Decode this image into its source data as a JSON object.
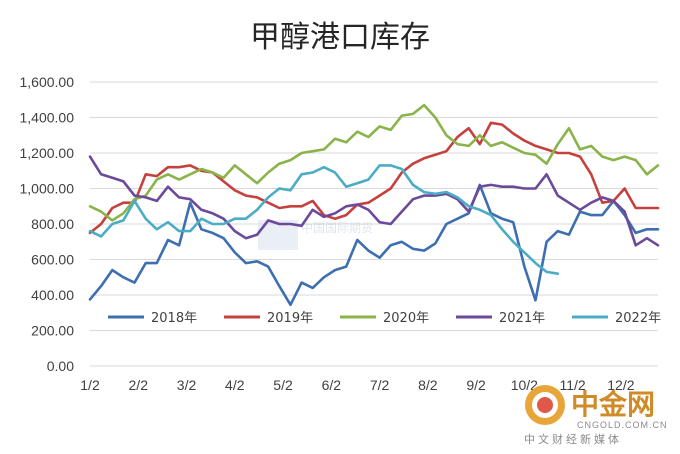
{
  "chart_data": {
    "type": "line",
    "title": "甲醇港口库存",
    "xlabel": "",
    "ylabel": "",
    "ylim": [
      0,
      1600
    ],
    "yticks": [
      "0.00",
      "200.00",
      "400.00",
      "600.00",
      "800.00",
      "1,000.00",
      "1,200.00",
      "1,400.00",
      "1,600.00"
    ],
    "xticks": [
      "1/2",
      "2/2",
      "3/2",
      "4/2",
      "5/2",
      "6/2",
      "7/2",
      "8/2",
      "9/2",
      "10/2",
      "11/2",
      "12/2"
    ],
    "x_weeks": 52,
    "grid": "horizontal",
    "legend_position": "bottom-inside",
    "series": [
      {
        "name": "2018年",
        "color": "#3d6fb0",
        "values": [
          375,
          450,
          540,
          500,
          470,
          580,
          580,
          710,
          680,
          920,
          770,
          750,
          720,
          640,
          580,
          590,
          560,
          450,
          345,
          470,
          440,
          500,
          540,
          560,
          710,
          650,
          610,
          680,
          700,
          660,
          650,
          690,
          800,
          830,
          860,
          1020,
          860,
          830,
          810,
          560,
          370,
          700,
          760,
          740,
          870,
          850,
          850,
          930,
          850,
          750,
          770,
          770
        ]
      },
      {
        "name": "2019年",
        "color": "#c5413d",
        "values": [
          750,
          800,
          890,
          920,
          920,
          1080,
          1070,
          1120,
          1120,
          1130,
          1100,
          1090,
          1040,
          990,
          960,
          950,
          920,
          890,
          900,
          900,
          930,
          850,
          830,
          850,
          910,
          920,
          960,
          1000,
          1090,
          1140,
          1170,
          1190,
          1210,
          1290,
          1340,
          1250,
          1370,
          1360,
          1310,
          1270,
          1240,
          1220,
          1200,
          1200,
          1180,
          1080,
          920,
          930,
          1000,
          890,
          890,
          890
        ]
      },
      {
        "name": "2020年",
        "color": "#8ab34a",
        "values": [
          900,
          870,
          820,
          860,
          940,
          960,
          1050,
          1080,
          1050,
          1080,
          1110,
          1090,
          1060,
          1130,
          1080,
          1030,
          1090,
          1140,
          1160,
          1200,
          1210,
          1220,
          1280,
          1260,
          1320,
          1290,
          1350,
          1330,
          1410,
          1420,
          1470,
          1400,
          1300,
          1250,
          1240,
          1300,
          1240,
          1260,
          1230,
          1200,
          1190,
          1140,
          1250,
          1340,
          1220,
          1240,
          1180,
          1160,
          1180,
          1160,
          1080,
          1130
        ]
      },
      {
        "name": "2021年",
        "color": "#6b4a9b",
        "values": [
          1180,
          1080,
          1060,
          1040,
          960,
          950,
          930,
          1010,
          950,
          940,
          880,
          860,
          830,
          760,
          720,
          740,
          820,
          800,
          800,
          790,
          880,
          840,
          860,
          900,
          910,
          880,
          810,
          800,
          870,
          940,
          960,
          960,
          970,
          940,
          870,
          1010,
          1020,
          1010,
          1010,
          1000,
          1000,
          1080,
          960,
          920,
          880,
          920,
          950,
          930,
          870,
          680,
          720,
          680
        ]
      },
      {
        "name": "2022年",
        "color": "#4bacc6",
        "values": [
          760,
          730,
          800,
          820,
          930,
          830,
          770,
          810,
          760,
          760,
          830,
          800,
          800,
          830,
          830,
          880,
          950,
          1000,
          990,
          1080,
          1090,
          1120,
          1090,
          1010,
          1030,
          1050,
          1130,
          1130,
          1110,
          1020,
          980,
          970,
          980,
          950,
          900,
          880,
          850,
          770,
          700,
          640,
          580,
          530,
          520
        ]
      }
    ]
  },
  "watermark": {
    "text": "中国国际期货"
  },
  "logo": {
    "name": "中金网",
    "domain": "CNGOLD.COM.CN",
    "tagline": "中文财经新媒体"
  }
}
